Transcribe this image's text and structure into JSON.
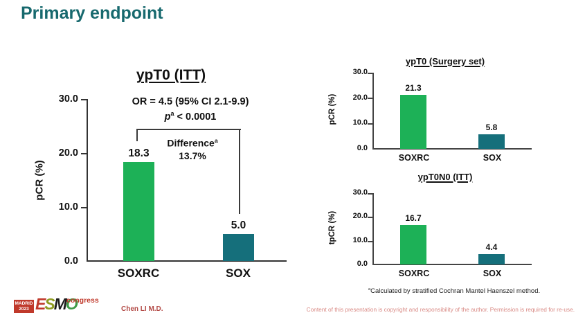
{
  "slide": {
    "title": "Primary endpoint",
    "author": "Chen LI M.D.",
    "footnote_sup": "a",
    "footnote_text": "Calculated by stratified Cochran Mantel Haenszel method.",
    "copyright": "Content of this presentation is copyright and responsibility of the author. Permission is required for re-use.",
    "logo": {
      "city": "MADRID",
      "year": "2023",
      "letters": [
        "E",
        "S",
        "M",
        "O"
      ],
      "event": "congress"
    }
  },
  "colors": {
    "title_teal": "#17696e",
    "soxrc_green": "#1db157",
    "sox_teal": "#156f7b",
    "footer_red": "#b34a46",
    "copyright_red": "#d98a85",
    "logo_red": "#c0392b",
    "logo_olive": "#8f9b20",
    "logo_dark": "#1c1c1c",
    "logo_green": "#3f9b46"
  },
  "main_annotations": {
    "or_line": "OR = 4.5 (95% CI 2.1-9.9)",
    "p_italic": "p",
    "p_sup": "a",
    "p_rest": " < 0.0001",
    "difference_label": "Difference",
    "difference_sup": "a",
    "difference_value": "13.7%"
  },
  "chart_data": [
    {
      "type": "bar",
      "title": "ypT0 (ITT)",
      "categories": [
        "SOXRC",
        "SOX"
      ],
      "values": [
        18.3,
        5.0
      ],
      "value_labels": [
        "18.3",
        "5.0"
      ],
      "xlabel": "",
      "ylabel": "pCR (%)",
      "ylim": [
        0,
        30
      ],
      "yticks": [
        30,
        20,
        10,
        0
      ],
      "ytick_labels": [
        "30.0",
        "20.0",
        "10.0",
        "0.0"
      ],
      "bar_colors": [
        "#1db157",
        "#156f7b"
      ],
      "grid": false,
      "legend": "none",
      "annotations": [
        "OR = 4.5 (95% CI 2.1-9.9)",
        "p^a < 0.0001",
        "Difference^a 13.7%"
      ]
    },
    {
      "type": "bar",
      "title": "ypT0 (Surgery set)",
      "categories": [
        "SOXRC",
        "SOX"
      ],
      "values": [
        21.3,
        5.8
      ],
      "value_labels": [
        "21.3",
        "5.8"
      ],
      "xlabel": "",
      "ylabel": "pCR (%)",
      "ylim": [
        0,
        30
      ],
      "yticks": [
        30,
        20,
        10,
        0
      ],
      "ytick_labels": [
        "30.0",
        "20.0",
        "10.0",
        "0.0"
      ],
      "bar_colors": [
        "#1db157",
        "#156f7b"
      ],
      "grid": false,
      "legend": "none"
    },
    {
      "type": "bar",
      "title": "ypT0N0 (ITT)",
      "categories": [
        "SOXRC",
        "SOX"
      ],
      "values": [
        16.7,
        4.4
      ],
      "value_labels": [
        "16.7",
        "4.4"
      ],
      "xlabel": "",
      "ylabel": "tpCR (%)",
      "ylim": [
        0,
        30
      ],
      "yticks": [
        30,
        20,
        10,
        0
      ],
      "ytick_labels": [
        "30.0",
        "20.0",
        "10.0",
        "0.0"
      ],
      "bar_colors": [
        "#1db157",
        "#156f7b"
      ],
      "grid": false,
      "legend": "none"
    }
  ]
}
